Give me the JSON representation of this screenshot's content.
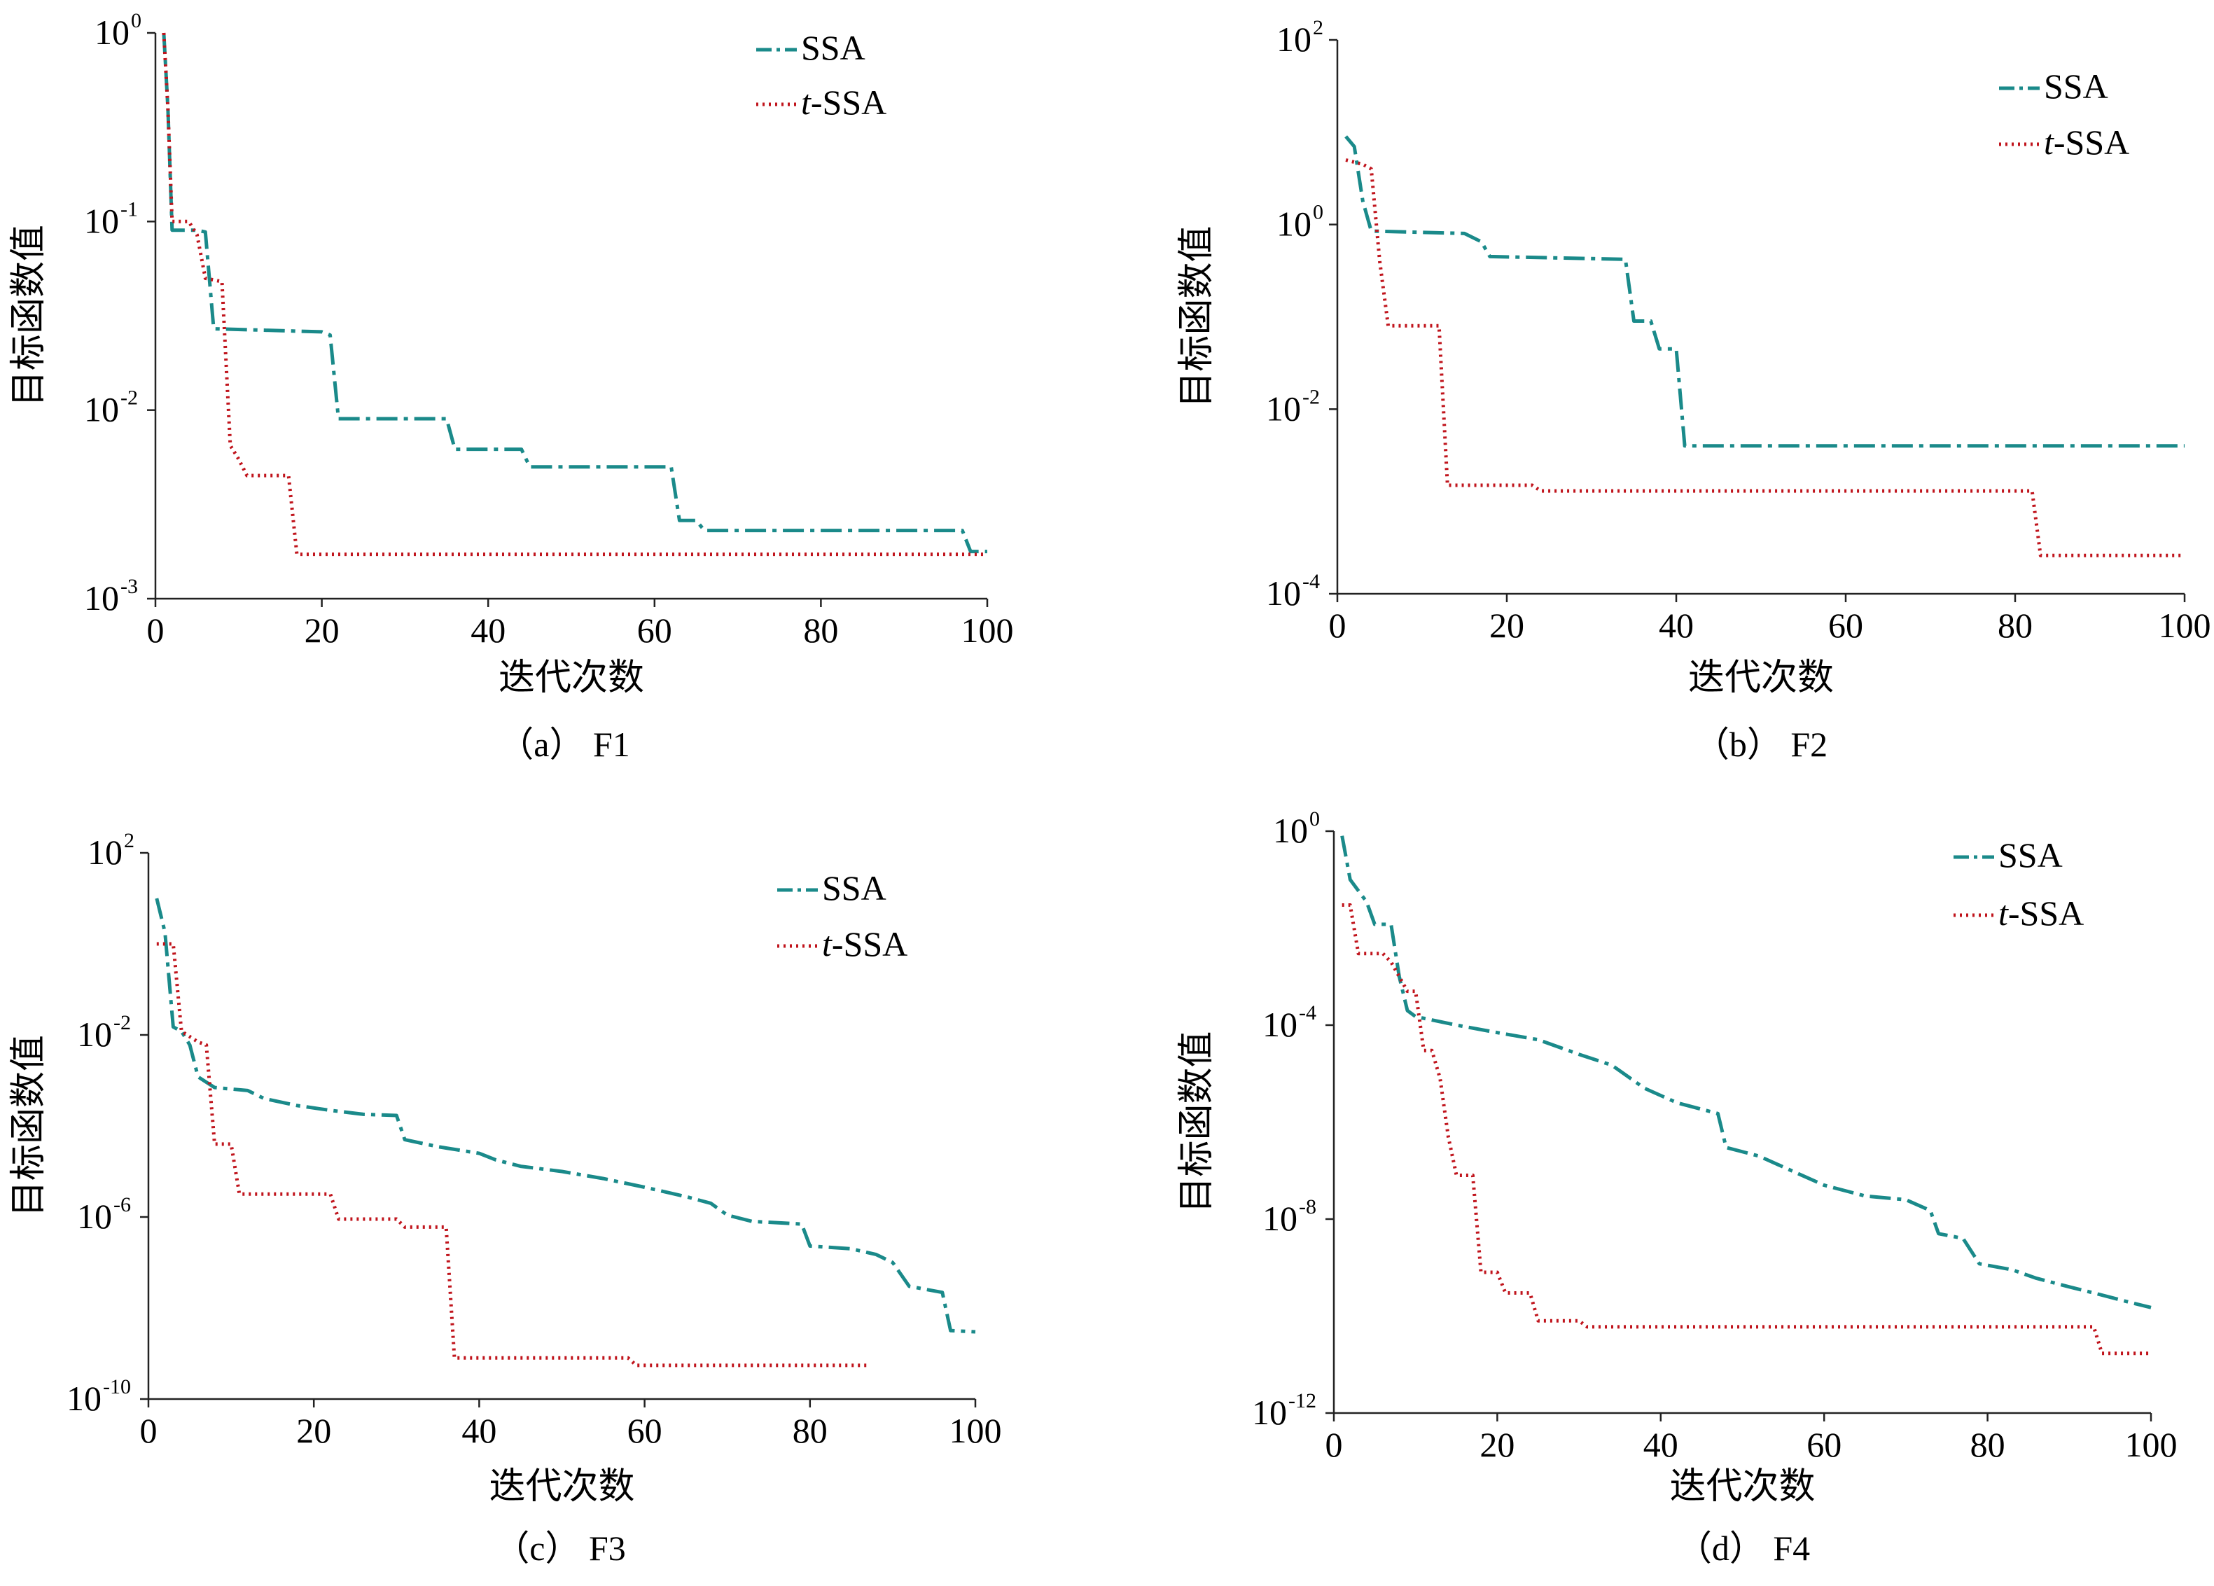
{
  "colors": {
    "SSA": "#1a8a8a",
    "t-SSA": "#c0141c"
  },
  "chart_data": [
    {
      "id": "F1",
      "type": "line",
      "caption": "（a） F1",
      "xlabel": "迭代次数",
      "ylabel": "目标函数值",
      "xlim": [
        0,
        100
      ],
      "ylim_log10": [
        -3,
        0
      ],
      "y_scale": "log",
      "xticks": [
        "0",
        "20",
        "40",
        "60",
        "80",
        "100"
      ],
      "yticks": [
        {
          "base": "10",
          "exp": "-3"
        },
        {
          "base": "10",
          "exp": "-2"
        },
        {
          "base": "10",
          "exp": "-1"
        },
        {
          "base": "10",
          "exp": "0"
        }
      ],
      "legend": [
        "SSA",
        "t-SSA"
      ],
      "series": [
        {
          "name": "SSA",
          "style": "dashdot",
          "points": [
            [
              1,
              1.0
            ],
            [
              1.5,
              0.4
            ],
            [
              2,
              0.09
            ],
            [
              5,
              0.09
            ],
            [
              6,
              0.088
            ],
            [
              7,
              0.027
            ],
            [
              20,
              0.026
            ],
            [
              21,
              0.025
            ],
            [
              22,
              0.009
            ],
            [
              35,
              0.009
            ],
            [
              36,
              0.0062
            ],
            [
              44,
              0.0062
            ],
            [
              45,
              0.005
            ],
            [
              62,
              0.005
            ],
            [
              63,
              0.0026
            ],
            [
              65,
              0.0026
            ],
            [
              66,
              0.0023
            ],
            [
              97,
              0.0023
            ],
            [
              98,
              0.00178
            ],
            [
              100,
              0.00178
            ]
          ]
        },
        {
          "name": "t-SSA",
          "style": "dotted",
          "points": [
            [
              1,
              1.0
            ],
            [
              1.5,
              0.4
            ],
            [
              2,
              0.1
            ],
            [
              4,
              0.1
            ],
            [
              5,
              0.085
            ],
            [
              6,
              0.05
            ],
            [
              8,
              0.048
            ],
            [
              9,
              0.0065
            ],
            [
              10,
              0.0055
            ],
            [
              11,
              0.0045
            ],
            [
              16,
              0.0045
            ],
            [
              17,
              0.00172
            ],
            [
              100,
              0.00172
            ]
          ]
        }
      ]
    },
    {
      "id": "F2",
      "type": "line",
      "caption": "（b） F2",
      "xlabel": "迭代次数",
      "ylabel": "目标函数值",
      "xlim": [
        0,
        100
      ],
      "ylim_log10": [
        -4,
        2
      ],
      "y_scale": "log",
      "xticks": [
        "0",
        "20",
        "40",
        "60",
        "80",
        "100"
      ],
      "yticks": [
        {
          "base": "10",
          "exp": "-4"
        },
        {
          "base": "10",
          "exp": "-2"
        },
        {
          "base": "10",
          "exp": "0"
        },
        {
          "base": "10",
          "exp": "2"
        }
      ],
      "legend": [
        "SSA",
        "t-SSA"
      ],
      "series": [
        {
          "name": "SSA",
          "style": "dashdot",
          "points": [
            [
              1,
              9.0
            ],
            [
              2,
              7.0
            ],
            [
              3,
              1.8
            ],
            [
              4,
              0.85
            ],
            [
              15,
              0.8
            ],
            [
              17,
              0.65
            ],
            [
              18,
              0.45
            ],
            [
              34,
              0.42
            ],
            [
              35,
              0.09
            ],
            [
              37,
              0.09
            ],
            [
              38,
              0.045
            ],
            [
              40,
              0.045
            ],
            [
              41,
              0.004
            ],
            [
              100,
              0.004
            ]
          ]
        },
        {
          "name": "t-SSA",
          "style": "dotted",
          "points": [
            [
              1,
              5.0
            ],
            [
              3,
              4.5
            ],
            [
              4,
              4.0
            ],
            [
              5,
              0.4
            ],
            [
              6,
              0.08
            ],
            [
              12,
              0.08
            ],
            [
              13,
              0.0015
            ],
            [
              23,
              0.0015
            ],
            [
              24,
              0.0013
            ],
            [
              82,
              0.0013
            ],
            [
              83,
              0.00026
            ],
            [
              100,
              0.00026
            ]
          ]
        }
      ]
    },
    {
      "id": "F3",
      "type": "line",
      "caption": "（c） F3",
      "xlabel": "迭代次数",
      "ylabel": "目标函数值",
      "xlim": [
        0,
        100
      ],
      "ylim_log10": [
        -10,
        2
      ],
      "y_scale": "log",
      "xticks": [
        "0",
        "20",
        "40",
        "60",
        "80",
        "100"
      ],
      "yticks": [
        {
          "base": "10",
          "exp": "-10"
        },
        {
          "base": "10",
          "exp": "-6"
        },
        {
          "base": "10",
          "exp": "-2"
        },
        {
          "base": "10",
          "exp": "2"
        }
      ],
      "legend": [
        "SSA",
        "t-SSA"
      ],
      "series": [
        {
          "name": "SSA",
          "style": "dashdot",
          "points": [
            [
              1,
              10
            ],
            [
              2,
              1.8
            ],
            [
              3,
              0.015
            ],
            [
              4,
              0.012
            ],
            [
              5,
              0.006
            ],
            [
              6,
              0.0012
            ],
            [
              8,
              0.0007
            ],
            [
              12,
              0.0006
            ],
            [
              14,
              0.0004
            ],
            [
              18,
              0.00028
            ],
            [
              22,
              0.00022
            ],
            [
              26,
              0.00018
            ],
            [
              30,
              0.00017
            ],
            [
              31,
              5e-05
            ],
            [
              35,
              3.5e-05
            ],
            [
              40,
              2.5e-05
            ],
            [
              42,
              1.8e-05
            ],
            [
              45,
              1.3e-05
            ],
            [
              50,
              1e-05
            ],
            [
              55,
              7e-06
            ],
            [
              60,
              4.5e-06
            ],
            [
              65,
              2.8e-06
            ],
            [
              68,
              2e-06
            ],
            [
              70,
              1.1e-06
            ],
            [
              73,
              8e-07
            ],
            [
              79,
              7e-07
            ],
            [
              80,
              2.3e-07
            ],
            [
              85,
              2e-07
            ],
            [
              88,
              1.5e-07
            ],
            [
              90,
              1e-07
            ],
            [
              92,
              3e-08
            ],
            [
              96,
              2.2e-08
            ],
            [
              97,
              3.2e-09
            ],
            [
              100,
              3e-09
            ]
          ]
        },
        {
          "name": "t-SSA",
          "style": "dotted",
          "points": [
            [
              1,
              1.0
            ],
            [
              3,
              1.0
            ],
            [
              4,
              0.012
            ],
            [
              6,
              0.007
            ],
            [
              7,
              0.006
            ],
            [
              8,
              4e-05
            ],
            [
              10,
              4e-05
            ],
            [
              11,
              3.2e-06
            ],
            [
              22,
              3.2e-06
            ],
            [
              23,
              9e-07
            ],
            [
              30,
              9e-07
            ],
            [
              31,
              6e-07
            ],
            [
              36,
              6e-07
            ],
            [
              37,
              8e-10
            ],
            [
              58,
              8e-10
            ],
            [
              59,
              5.5e-10
            ],
            [
              87,
              5.5e-10
            ]
          ]
        }
      ]
    },
    {
      "id": "F4",
      "type": "line",
      "caption": "（d） F4",
      "xlabel": "迭代次数",
      "ylabel": "目标函数值",
      "xlim": [
        0,
        100
      ],
      "ylim_log10": [
        -12,
        0
      ],
      "y_scale": "log",
      "xticks": [
        "0",
        "20",
        "40",
        "60",
        "80",
        "100"
      ],
      "yticks": [
        {
          "base": "10",
          "exp": "-12"
        },
        {
          "base": "10",
          "exp": "-8"
        },
        {
          "base": "10",
          "exp": "-4"
        },
        {
          "base": "10",
          "exp": "0"
        }
      ],
      "legend": [
        "SSA",
        "t-SSA"
      ],
      "series": [
        {
          "name": "SSA",
          "style": "dashdot",
          "points": [
            [
              1,
              0.8
            ],
            [
              2,
              0.1
            ],
            [
              4,
              0.035
            ],
            [
              5,
              0.012
            ],
            [
              7,
              0.012
            ],
            [
              8,
              0.001
            ],
            [
              9,
              0.0002
            ],
            [
              10,
              0.00015
            ],
            [
              15,
              0.0001
            ],
            [
              20,
              7e-05
            ],
            [
              25,
              5e-05
            ],
            [
              30,
              2.5e-05
            ],
            [
              34,
              1.5e-05
            ],
            [
              38,
              5e-06
            ],
            [
              42,
              2.5e-06
            ],
            [
              47,
              1.5e-06
            ],
            [
              48,
              3e-07
            ],
            [
              52,
              2e-07
            ],
            [
              56,
              1e-07
            ],
            [
              60,
              5e-08
            ],
            [
              65,
              3e-08
            ],
            [
              70,
              2.5e-08
            ],
            [
              73,
              1.5e-08
            ],
            [
              74,
              5e-09
            ],
            [
              77,
              4e-09
            ],
            [
              79,
              1.2e-09
            ],
            [
              83,
              9e-10
            ],
            [
              86,
              6e-10
            ],
            [
              90,
              4e-10
            ],
            [
              93,
              3e-10
            ],
            [
              97,
              2e-10
            ],
            [
              100,
              1.5e-10
            ]
          ]
        },
        {
          "name": "t-SSA",
          "style": "dotted",
          "points": [
            [
              1,
              0.03
            ],
            [
              2,
              0.03
            ],
            [
              3,
              0.003
            ],
            [
              6,
              0.003
            ],
            [
              7,
              0.002
            ],
            [
              9,
              0.0005
            ],
            [
              10,
              0.0005
            ],
            [
              11,
              3e-05
            ],
            [
              12,
              3e-05
            ],
            [
              13,
              8e-06
            ],
            [
              14,
              5e-07
            ],
            [
              15,
              8e-08
            ],
            [
              17,
              8e-08
            ],
            [
              18,
              8e-10
            ],
            [
              20,
              8e-10
            ],
            [
              21,
              3e-10
            ],
            [
              24,
              3e-10
            ],
            [
              25,
              8e-11
            ],
            [
              30,
              8e-11
            ],
            [
              31,
              6e-11
            ],
            [
              93,
              6e-11
            ],
            [
              94,
              1.7e-11
            ],
            [
              100,
              1.7e-11
            ]
          ]
        }
      ]
    }
  ]
}
